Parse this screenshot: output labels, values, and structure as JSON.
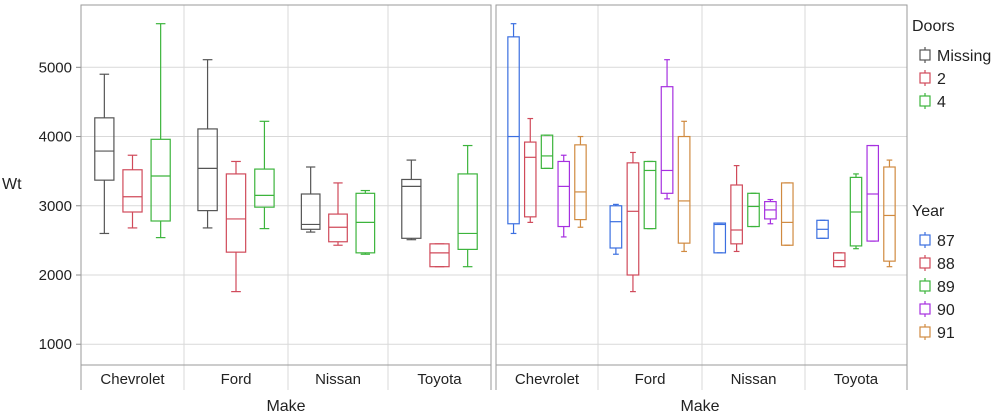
{
  "colors": {
    "Missing": "#555555",
    "2": "#d04a5a",
    "4": "#3cb43c",
    "87": "#3b6fe0",
    "88": "#d04a5a",
    "89": "#3cb43c",
    "90": "#a630e0",
    "91": "#d08a40"
  },
  "chart_data": {
    "type": "boxplot",
    "ylabel": "Wt",
    "ylim": [
      700,
      5900
    ],
    "yticks": [
      1000,
      2000,
      3000,
      4000,
      5000
    ],
    "makes": [
      "Chevrolet",
      "Ford",
      "Nissan",
      "Toyota"
    ],
    "panels": [
      {
        "xlabel": "Make",
        "group_by": "Doors",
        "groups": [
          "Missing",
          "2",
          "4"
        ],
        "boxes": [
          {
            "make": "Chevrolet",
            "group": "Missing",
            "min": 2600,
            "q1": 3370,
            "median": 3790,
            "q3": 4270,
            "max": 4900
          },
          {
            "make": "Chevrolet",
            "group": "2",
            "min": 2680,
            "q1": 2910,
            "median": 3130,
            "q3": 3520,
            "max": 3730
          },
          {
            "make": "Chevrolet",
            "group": "4",
            "min": 2540,
            "q1": 2780,
            "median": 3430,
            "q3": 3960,
            "max": 5630
          },
          {
            "make": "Ford",
            "group": "Missing",
            "min": 2680,
            "q1": 2930,
            "median": 3540,
            "q3": 4110,
            "max": 5110
          },
          {
            "make": "Ford",
            "group": "2",
            "min": 1760,
            "q1": 2330,
            "median": 2810,
            "q3": 3460,
            "max": 3640
          },
          {
            "make": "Ford",
            "group": "4",
            "min": 2670,
            "q1": 2980,
            "median": 3150,
            "q3": 3530,
            "max": 4220
          },
          {
            "make": "Nissan",
            "group": "Missing",
            "min": 2620,
            "q1": 2660,
            "median": 2730,
            "q3": 3170,
            "max": 3560
          },
          {
            "make": "Nissan",
            "group": "2",
            "min": 2430,
            "q1": 2480,
            "median": 2690,
            "q3": 2880,
            "max": 3330
          },
          {
            "make": "Nissan",
            "group": "4",
            "min": 2300,
            "q1": 2320,
            "median": 2760,
            "q3": 3180,
            "max": 3220
          },
          {
            "make": "Toyota",
            "group": "Missing",
            "min": 2510,
            "q1": 2530,
            "median": 3280,
            "q3": 3380,
            "max": 3660
          },
          {
            "make": "Toyota",
            "group": "2",
            "min": 2120,
            "q1": 2120,
            "median": 2320,
            "q3": 2450,
            "max": 2450
          },
          {
            "make": "Toyota",
            "group": "4",
            "min": 2120,
            "q1": 2370,
            "median": 2600,
            "q3": 3460,
            "max": 3870
          }
        ]
      },
      {
        "xlabel": "Make",
        "group_by": "Year",
        "groups": [
          "87",
          "88",
          "89",
          "90",
          "91"
        ],
        "boxes": [
          {
            "make": "Chevrolet",
            "group": "87",
            "min": 2600,
            "q1": 2740,
            "median": 4000,
            "q3": 5440,
            "max": 5630
          },
          {
            "make": "Chevrolet",
            "group": "88",
            "min": 2760,
            "q1": 2840,
            "median": 3700,
            "q3": 3920,
            "max": 4260
          },
          {
            "make": "Chevrolet",
            "group": "89",
            "min": 3540,
            "q1": 3540,
            "median": 3720,
            "q3": 4020,
            "max": 4020
          },
          {
            "make": "Chevrolet",
            "group": "90",
            "min": 2550,
            "q1": 2700,
            "median": 3280,
            "q3": 3640,
            "max": 3730
          },
          {
            "make": "Chevrolet",
            "group": "91",
            "min": 2690,
            "q1": 2800,
            "median": 3200,
            "q3": 3880,
            "max": 4000
          },
          {
            "make": "Ford",
            "group": "87",
            "min": 2300,
            "q1": 2390,
            "median": 2770,
            "q3": 3000,
            "max": 3020
          },
          {
            "make": "Ford",
            "group": "88",
            "min": 1760,
            "q1": 2000,
            "median": 2920,
            "q3": 3620,
            "max": 3770
          },
          {
            "make": "Ford",
            "group": "89",
            "min": 2670,
            "q1": 2670,
            "median": 3510,
            "q3": 3640,
            "max": 3640
          },
          {
            "make": "Ford",
            "group": "90",
            "min": 3100,
            "q1": 3180,
            "median": 3510,
            "q3": 4720,
            "max": 5110
          },
          {
            "make": "Ford",
            "group": "91",
            "min": 2340,
            "q1": 2460,
            "median": 3070,
            "q3": 4000,
            "max": 4220
          },
          {
            "make": "Nissan",
            "group": "87",
            "min": 2320,
            "q1": 2320,
            "median": 2730,
            "q3": 2750,
            "max": 2750
          },
          {
            "make": "Nissan",
            "group": "88",
            "min": 2340,
            "q1": 2450,
            "median": 2650,
            "q3": 3300,
            "max": 3580
          },
          {
            "make": "Nissan",
            "group": "89",
            "min": 2700,
            "q1": 2700,
            "median": 2990,
            "q3": 3180,
            "max": 3180
          },
          {
            "make": "Nissan",
            "group": "90",
            "min": 2740,
            "q1": 2810,
            "median": 2940,
            "q3": 3060,
            "max": 3090
          },
          {
            "make": "Nissan",
            "group": "91",
            "min": 2430,
            "q1": 2430,
            "median": 2760,
            "q3": 3330,
            "max": 3330
          },
          {
            "make": "Toyota",
            "group": "87",
            "min": 2530,
            "q1": 2530,
            "median": 2660,
            "q3": 2790,
            "max": 2790
          },
          {
            "make": "Toyota",
            "group": "88",
            "min": 2120,
            "q1": 2120,
            "median": 2210,
            "q3": 2320,
            "max": 2320
          },
          {
            "make": "Toyota",
            "group": "89",
            "min": 2380,
            "q1": 2420,
            "median": 2910,
            "q3": 3410,
            "max": 3460
          },
          {
            "make": "Toyota",
            "group": "90",
            "min": 2490,
            "q1": 2490,
            "median": 3170,
            "q3": 3870,
            "max": 3870
          },
          {
            "make": "Toyota",
            "group": "91",
            "min": 2120,
            "q1": 2200,
            "median": 2860,
            "q3": 3560,
            "max": 3660
          }
        ]
      }
    ],
    "legends": [
      {
        "title": "Doors",
        "items": [
          "Missing",
          "2",
          "4"
        ]
      },
      {
        "title": "Year",
        "items": [
          "87",
          "88",
          "89",
          "90",
          "91"
        ]
      }
    ]
  }
}
